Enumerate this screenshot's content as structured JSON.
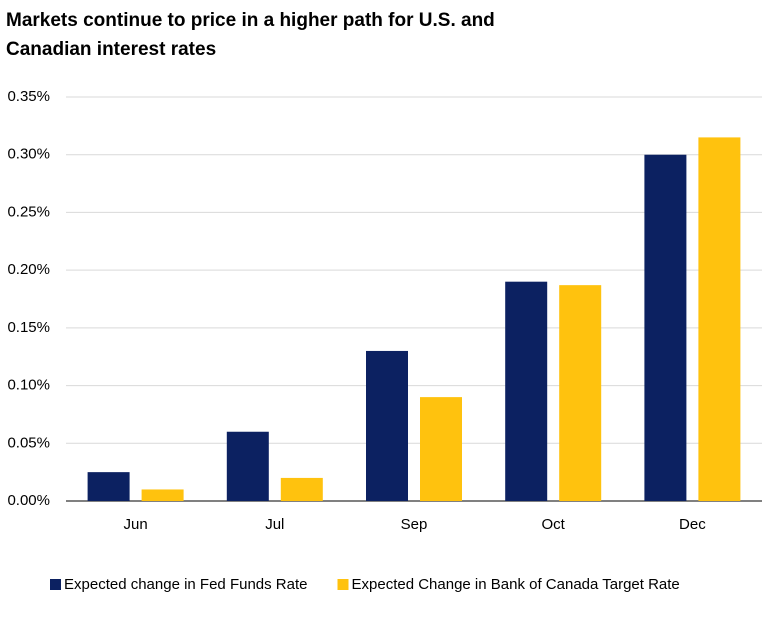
{
  "chart_data": {
    "type": "bar",
    "title": "Markets continue to price in a higher path for U.S. and Canadian interest rates",
    "categories": [
      "Jun",
      "Jul",
      "Sep",
      "Oct",
      "Dec"
    ],
    "series": [
      {
        "name": "Expected change in Fed Funds Rate",
        "color": "#0c2161",
        "values": [
          0.025,
          0.06,
          0.13,
          0.19,
          0.3
        ]
      },
      {
        "name": "Expected Change in Bank of Canada Target Rate",
        "color": "#ffc20e",
        "values": [
          0.01,
          0.02,
          0.09,
          0.187,
          0.315
        ]
      }
    ],
    "ylim": [
      0,
      0.35
    ],
    "yticks": [
      {
        "value": 0,
        "label": "0.00%"
      },
      {
        "value": 0.05,
        "label": "0.05%"
      },
      {
        "value": 0.1,
        "label": "0.10%"
      },
      {
        "value": 0.15,
        "label": "0.15%"
      },
      {
        "value": 0.2,
        "label": "0.20%"
      },
      {
        "value": 0.25,
        "label": "0.25%"
      },
      {
        "value": 0.3,
        "label": "0.30%"
      },
      {
        "value": 0.35,
        "label": "0.35%"
      }
    ],
    "grid": true,
    "legend": "bottom"
  }
}
